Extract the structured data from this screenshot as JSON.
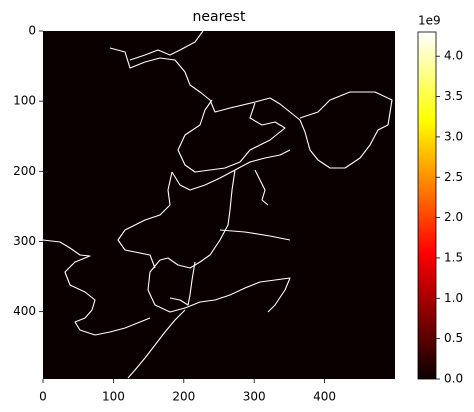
{
  "chart_data": {
    "type": "image",
    "title": "nearest",
    "interpolation": "nearest",
    "colormap": "hot",
    "xlim": [
      0,
      500
    ],
    "xticks": [
      0,
      100,
      200,
      300,
      400
    ],
    "ylim": [
      496,
      0
    ],
    "yticks": [
      0,
      100,
      200,
      300,
      400
    ],
    "clim": [
      0,
      4.3
    ],
    "colorbar_offset": "1e9",
    "colorbar_ticks": [
      {
        "value": 0,
        "label": "0.0"
      },
      {
        "value": 0.5,
        "label": "0.5"
      },
      {
        "value": 1,
        "label": "1.0"
      },
      {
        "value": 1.5,
        "label": "1.5"
      },
      {
        "value": 2,
        "label": "2.0"
      },
      {
        "value": 2.5,
        "label": "2.5"
      },
      {
        "value": 3,
        "label": "3.0"
      },
      {
        "value": 3.5,
        "label": "3.5"
      },
      {
        "value": 4,
        "label": "4.0"
      }
    ]
  }
}
